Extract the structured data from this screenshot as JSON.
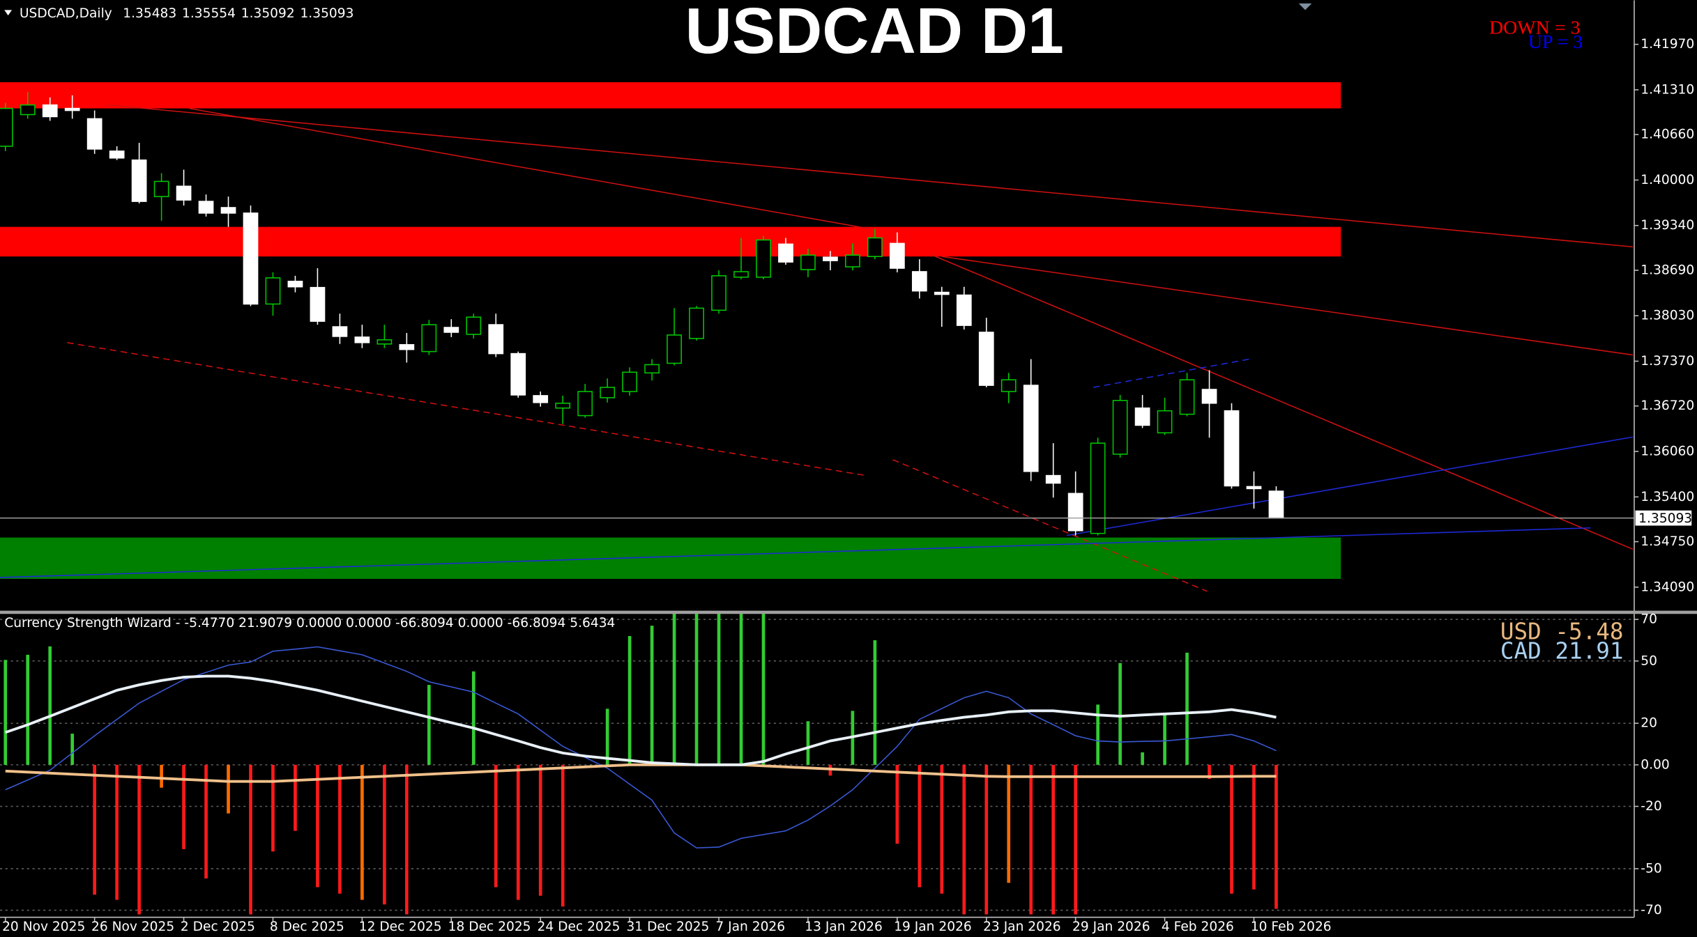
{
  "chart_data": [
    {
      "type": "candlestick",
      "title": "USDCAD D1",
      "symbol": "USDCAD,Daily",
      "annotations": [
        {
          "text": "DOWN = 3",
          "color": "#ff0000"
        },
        {
          "text": "UP = 3",
          "color": "#0000ff"
        }
      ],
      "categories": [
        "20 Nov 2025",
        null,
        null,
        null,
        "26 Nov 2025",
        null,
        null,
        null,
        "2 Dec 2025",
        null,
        null,
        null,
        "8 Dec 2025",
        null,
        null,
        null,
        "12 Dec 2025",
        null,
        null,
        null,
        "18 Dec 2025",
        null,
        null,
        null,
        "24 Dec 2025",
        null,
        null,
        null,
        "31 Dec 2025",
        null,
        null,
        null,
        "7 Jan 2026",
        null,
        null,
        null,
        "13 Jan 2026",
        null,
        null,
        null,
        "19 Jan 2026",
        null,
        null,
        null,
        "23 Jan 2026",
        null,
        null,
        null,
        "29 Jan 2026",
        null,
        null,
        null,
        "4 Feb 2026",
        null,
        null,
        null,
        "10 Feb 2026",
        null
      ],
      "open": [
        1.4049,
        1.4095,
        1.4109,
        1.4104,
        1.4089,
        1.4042,
        1.4029,
        1.3976,
        1.3991,
        1.3969,
        1.396,
        1.3952,
        1.382,
        1.3853,
        1.3844,
        1.3787,
        1.3772,
        1.3762,
        1.3761,
        1.3751,
        1.3786,
        1.3776,
        1.379,
        1.3748,
        1.3687,
        1.3669,
        1.3658,
        1.3684,
        1.3693,
        1.372,
        1.3734,
        1.377,
        1.3811,
        1.3859,
        1.3859,
        1.3907,
        1.387,
        1.3888,
        1.3874,
        1.3889,
        1.3908,
        1.3867,
        1.3837,
        1.3833,
        1.3779,
        1.3693,
        1.3702,
        1.3571,
        1.3545,
        1.3487,
        1.3602,
        1.3669,
        1.3633,
        1.366,
        1.3696,
        1.3665,
        1.3555,
        1.35483
      ],
      "high": [
        1.4112,
        1.4128,
        1.412,
        1.4123,
        1.4101,
        1.4049,
        1.4054,
        1.401,
        1.4015,
        1.3979,
        1.3976,
        1.3963,
        1.3866,
        1.3861,
        1.3872,
        1.3806,
        1.379,
        1.379,
        1.3778,
        1.3797,
        1.3798,
        1.3806,
        1.3806,
        1.3751,
        1.3693,
        1.3687,
        1.3704,
        1.3712,
        1.3728,
        1.374,
        1.3814,
        1.3817,
        1.3869,
        1.3916,
        1.3919,
        1.3916,
        1.39,
        1.3897,
        1.3908,
        1.3929,
        1.3924,
        1.3885,
        1.3845,
        1.3845,
        1.38,
        1.372,
        1.374,
        1.3618,
        1.3577,
        1.3626,
        1.3688,
        1.3688,
        1.3684,
        1.372,
        1.3724,
        1.3676,
        1.3577,
        1.35554
      ],
      "low": [
        1.4042,
        1.4089,
        1.4086,
        1.4089,
        1.4038,
        1.4029,
        1.3966,
        1.3941,
        1.3963,
        1.3947,
        1.3932,
        1.3817,
        1.3803,
        1.3837,
        1.379,
        1.3762,
        1.3756,
        1.3756,
        1.3735,
        1.3746,
        1.3772,
        1.377,
        1.3743,
        1.3684,
        1.3671,
        1.3646,
        1.3655,
        1.3677,
        1.3687,
        1.3709,
        1.3731,
        1.3767,
        1.3806,
        1.3856,
        1.3856,
        1.3877,
        1.3859,
        1.3869,
        1.3869,
        1.3885,
        1.3866,
        1.3828,
        1.3787,
        1.3783,
        1.3699,
        1.3676,
        1.3563,
        1.3539,
        1.3484,
        1.3484,
        1.3597,
        1.364,
        1.363,
        1.3657,
        1.3626,
        1.3552,
        1.3523,
        1.35092
      ],
      "close": [
        1.4104,
        1.4109,
        1.4092,
        1.4101,
        1.4045,
        1.4032,
        1.3969,
        1.3998,
        1.3971,
        1.3952,
        1.3952,
        1.382,
        1.3858,
        1.3845,
        1.3795,
        1.3773,
        1.3764,
        1.3768,
        1.3754,
        1.379,
        1.3779,
        1.3801,
        1.3748,
        1.3688,
        1.3677,
        1.3676,
        1.3693,
        1.3699,
        1.3721,
        1.3732,
        1.3775,
        1.3814,
        1.3861,
        1.3867,
        1.3913,
        1.3881,
        1.3891,
        1.3883,
        1.3891,
        1.3916,
        1.3872,
        1.3839,
        1.3834,
        1.3789,
        1.3702,
        1.371,
        1.3577,
        1.356,
        1.3491,
        1.3618,
        1.368,
        1.3644,
        1.3665,
        1.371,
        1.3676,
        1.3556,
        1.3552,
        1.35093
      ],
      "bull_color": "#00c800",
      "bear_color": "#ffffff",
      "ylim": [
        1.3374,
        1.4261
      ],
      "yticks": [
        {
          "value": 1.4197,
          "label": "1.41970"
        },
        {
          "value": 1.4131,
          "label": "1.41310"
        },
        {
          "value": 1.4066,
          "label": "1.40660"
        },
        {
          "value": 1.4,
          "label": "1.40000"
        },
        {
          "value": 1.3934,
          "label": "1.39340"
        },
        {
          "value": 1.3869,
          "label": "1.38690"
        },
        {
          "value": 1.3803,
          "label": "1.38030"
        },
        {
          "value": 1.3737,
          "label": "1.37370"
        },
        {
          "value": 1.3672,
          "label": "1.36720"
        },
        {
          "value": 1.3606,
          "label": "1.36060"
        },
        {
          "value": 1.354,
          "label": "1.35400"
        },
        {
          "value": 1.3475,
          "label": "1.34750"
        },
        {
          "value": 1.3409,
          "label": "1.34090"
        }
      ],
      "zones": [
        {
          "color": "#ff0000",
          "x": [
            -0.3,
            59.9
          ],
          "y": [
            1.4142,
            1.4104
          ]
        },
        {
          "color": "#ff0000",
          "x": [
            -0.3,
            59.9
          ],
          "y": [
            1.3932,
            1.3889
          ]
        },
        {
          "color": "#008000",
          "x": [
            -0.3,
            59.9
          ],
          "y": [
            1.3481,
            1.3421
          ]
        }
      ],
      "trendlines": [
        {
          "color": "#d01010",
          "dashed": false,
          "x": [
            4.6,
            73.0
          ],
          "y": [
            1.4109,
            1.3903
          ]
        },
        {
          "color": "#d01010",
          "dashed": false,
          "x": [
            8.25,
            38.8
          ],
          "y": [
            1.4104,
            1.3929
          ]
        },
        {
          "color": "#d01010",
          "dashed": false,
          "x": [
            42.0,
            73.0
          ],
          "y": [
            1.3889,
            1.3746
          ]
        },
        {
          "color": "#d01010",
          "dashed": false,
          "x": [
            41.5,
            73.0
          ],
          "y": [
            1.3892,
            1.3464
          ]
        },
        {
          "color": "#d01010",
          "dashed": true,
          "x": [
            2.77,
            38.6
          ],
          "y": [
            1.3764,
            1.3571
          ]
        },
        {
          "color": "#d01010",
          "dashed": true,
          "x": [
            39.8,
            53.9
          ],
          "y": [
            1.3594,
            1.3403
          ]
        },
        {
          "color": "#1e2ad8",
          "dashed": false,
          "x": [
            -0.24,
            71.1
          ],
          "y": [
            1.3423,
            1.3495
          ]
        },
        {
          "color": "#1e2ad8",
          "dashed": false,
          "x": [
            47.6,
            73.0
          ],
          "y": [
            1.3484,
            1.3627
          ]
        },
        {
          "color": "#1e2ad8",
          "dashed": true,
          "x": [
            48.8,
            55.8
          ],
          "y": [
            1.3699,
            1.374
          ]
        }
      ]
    },
    {
      "type": "bar",
      "title": "Currency Strength Wizard -  -5.4770 21.9079 0.0000 0.0000 -66.8094 0.0000 -66.8094 5.6434",
      "legend": [
        {
          "text": "USD -5.48",
          "color": "#e8b880"
        },
        {
          "text": "CAD 21.91",
          "color": "#a8d0f0"
        }
      ],
      "values": [
        50.5,
        53,
        57,
        15,
        -62.5,
        -65,
        -72,
        -11,
        -40.6,
        -54.7,
        -23.4,
        -72,
        -41.7,
        -31.8,
        -58.9,
        -62,
        -65,
        -67.2,
        -72,
        38.5,
        null,
        45,
        -58.9,
        -65,
        -63,
        -68.2,
        null,
        27,
        62,
        67,
        75,
        75,
        75,
        75,
        75,
        null,
        21,
        -5.2,
        26,
        60,
        -38,
        -58.9,
        -62,
        -72,
        -72,
        -56.8,
        -72,
        -72,
        -72,
        29,
        49,
        6,
        25,
        54,
        -6.8,
        -62,
        -60,
        -69.3
      ],
      "colors": [
        "#33cc33",
        "#33cc33",
        "#33cc33",
        "#33cc33",
        "#ff1a1a",
        "#ff1a1a",
        "#ff1a1a",
        "#ff6a00",
        "#ff1a1a",
        "#ff1a1a",
        "#ff6a00",
        "#ff1a1a",
        "#ff1a1a",
        "#ff1a1a",
        "#ff1a1a",
        "#ff1a1a",
        "#ff6a00",
        "#ff1a1a",
        "#ff1a1a",
        "#33cc33",
        null,
        "#33cc33",
        "#ff1a1a",
        "#ff1a1a",
        "#ff1a1a",
        "#ff1a1a",
        null,
        "#33cc33",
        "#33cc33",
        "#33cc33",
        "#33cc33",
        "#33cc33",
        "#33cc33",
        "#33cc33",
        "#33cc33",
        null,
        "#33cc33",
        "#ff1a1a",
        "#33cc33",
        "#33cc33",
        "#ff1a1a",
        "#ff1a1a",
        "#ff1a1a",
        "#ff1a1a",
        "#ff1a1a",
        "#ff6a00",
        "#ff1a1a",
        "#ff1a1a",
        "#ff1a1a",
        "#33cc33",
        "#33cc33",
        "#33cc33",
        "#33cc33",
        "#33cc33",
        "#ff1a1a",
        "#ff1a1a",
        "#ff1a1a",
        "#ff1a1a"
      ],
      "lines": [
        {
          "color": "#3a5ad8",
          "width": 1,
          "values": [
            -12,
            -7.3,
            -2.6,
            5.7,
            14,
            21.9,
            29.7,
            35.4,
            41,
            44.5,
            48,
            49.5,
            54.7,
            55.7,
            56.8,
            54.9,
            53,
            49,
            45,
            40,
            37.5,
            35,
            29.7,
            24.5,
            16.7,
            8.9,
            3.6,
            -1.6,
            -9.3,
            -17,
            -32.8,
            -40,
            -39.6,
            -35.4,
            -33.6,
            -31.8,
            -26.6,
            -19.8,
            -12,
            -1.6,
            8.9,
            21.9,
            27.1,
            32.3,
            35.4,
            32.3,
            24.5,
            19.3,
            14,
            11.5,
            11,
            11.3,
            11.5,
            12.5,
            13.5,
            14.6,
            11.5,
            6.8
          ]
        },
        {
          "color": "#f0c08a",
          "width": 2.5,
          "values": [
            -3,
            -3.5,
            -4,
            -4.5,
            -5,
            -5.5,
            -6,
            -6.5,
            -7,
            -7.5,
            -8,
            -8,
            -8,
            -7.5,
            -7,
            -6.5,
            -6,
            -5.5,
            -5,
            -4.5,
            -4,
            -3.5,
            -3,
            -2.5,
            -2,
            -1.5,
            -1,
            -0.5,
            0,
            0,
            0,
            0,
            0,
            0,
            -0.5,
            -1,
            -1.5,
            -2,
            -2.5,
            -3,
            -3.5,
            -4,
            -4.5,
            -5,
            -5.5,
            -5.7,
            -5.7,
            -5.7,
            -5.7,
            -5.7,
            -5.7,
            -5.7,
            -5.7,
            -5.7,
            -5.7,
            -5.6,
            -5.5,
            -5.5
          ]
        },
        {
          "color": "#e8f0f8",
          "width": 2.5,
          "values": [
            15.6,
            19.3,
            23.4,
            27.6,
            31.8,
            35.9,
            38.5,
            40.6,
            42.2,
            42.7,
            42.7,
            41.7,
            40.1,
            38,
            35.9,
            33.3,
            30.7,
            28.1,
            25.5,
            22.9,
            20.3,
            17.7,
            14.6,
            11.5,
            8.3,
            5.7,
            4.2,
            3.1,
            2.1,
            1,
            0.5,
            0,
            0,
            0,
            1.6,
            5.2,
            8.3,
            11.5,
            13.5,
            15.6,
            17.7,
            19.8,
            21.4,
            22.9,
            24,
            25.5,
            26,
            26,
            25,
            24,
            23.4,
            24,
            24.5,
            25,
            25.5,
            26.6,
            25,
            22.9
          ]
        }
      ],
      "grid": true,
      "ylim": [
        -73.4,
        72.9
      ],
      "yticks": [
        70,
        50,
        20,
        {
          "value": 0,
          "label": "0.00"
        },
        -20,
        -50,
        -70
      ]
    }
  ]
}
